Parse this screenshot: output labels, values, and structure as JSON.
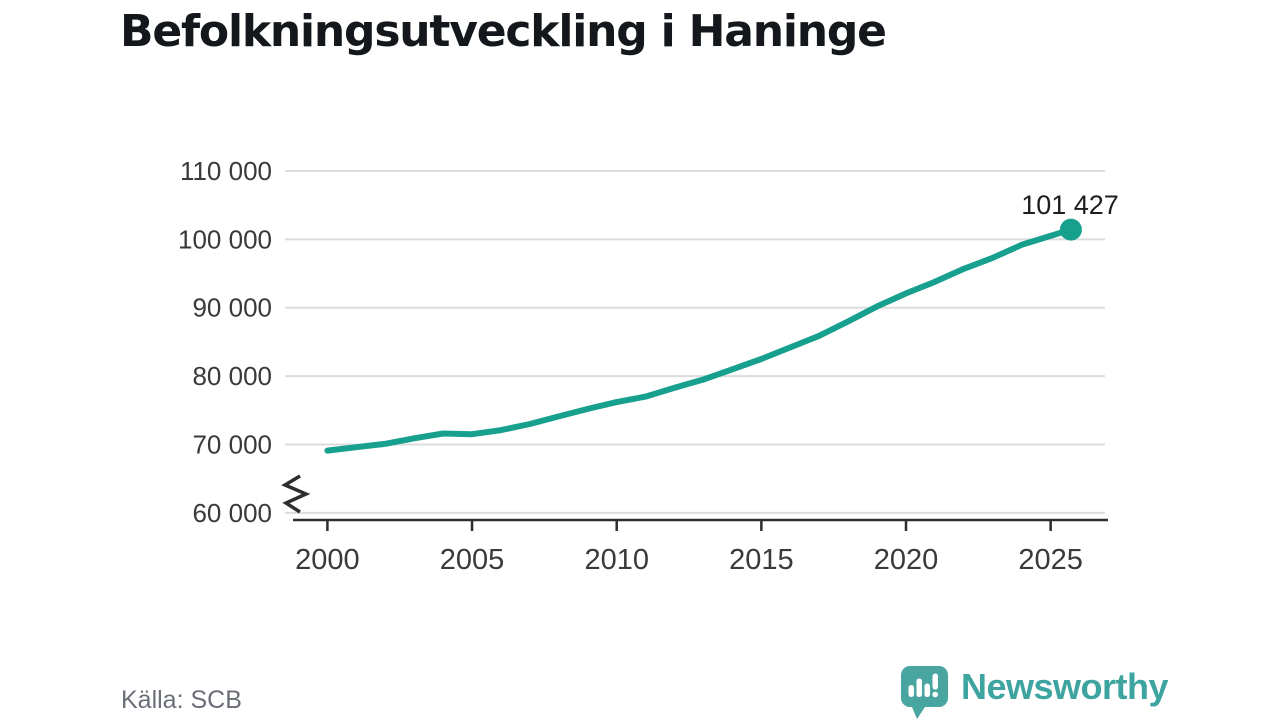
{
  "title": "Befolkningsutveckling i Haninge",
  "source_label": "Källa: SCB",
  "branding": {
    "name": "Newsworthy",
    "icon": "speech-bubble-bar-chart-icon"
  },
  "colors": {
    "line": "#18a08e",
    "logo_teal": "#48a5a0",
    "wordmark_teal": "#3da4a0",
    "grid": "#dcdcdc",
    "axis": "#2e2e2e",
    "tick_text": "#3a3a3a",
    "title_text": "#14181c",
    "source_text": "#6a6e78"
  },
  "chart_data": {
    "type": "line",
    "title": "Befolkningsutveckling i Haninge",
    "xlabel": "",
    "ylabel": "",
    "x": [
      2000,
      2001,
      2002,
      2003,
      2004,
      2005,
      2006,
      2007,
      2008,
      2009,
      2010,
      2011,
      2012,
      2013,
      2014,
      2015,
      2016,
      2017,
      2018,
      2019,
      2020,
      2021,
      2022,
      2023,
      2024,
      2025.7
    ],
    "values": [
      69100,
      69600,
      70100,
      70900,
      71600,
      71500,
      72100,
      73000,
      74100,
      75200,
      76200,
      77000,
      78300,
      79500,
      81000,
      82500,
      84200,
      85900,
      88000,
      90200,
      92100,
      93800,
      95700,
      97300,
      99200,
      101427
    ],
    "end_label": "101 427",
    "end_value": 101427,
    "x_tick_values": [
      2000,
      2005,
      2010,
      2015,
      2020,
      2025
    ],
    "x_tick_labels": [
      "2000",
      "2005",
      "2010",
      "2015",
      "2020",
      "2025"
    ],
    "y_tick_values": [
      110000,
      100000,
      90000,
      80000,
      70000,
      60000
    ],
    "y_tick_labels": [
      "110 000",
      "100 000",
      "90 000",
      "80 000",
      "70 000",
      "60 000"
    ],
    "ylim": [
      60000,
      110000
    ],
    "y_axis_break": true,
    "grid": "horizontal",
    "legend": "none",
    "source": "SCB"
  }
}
